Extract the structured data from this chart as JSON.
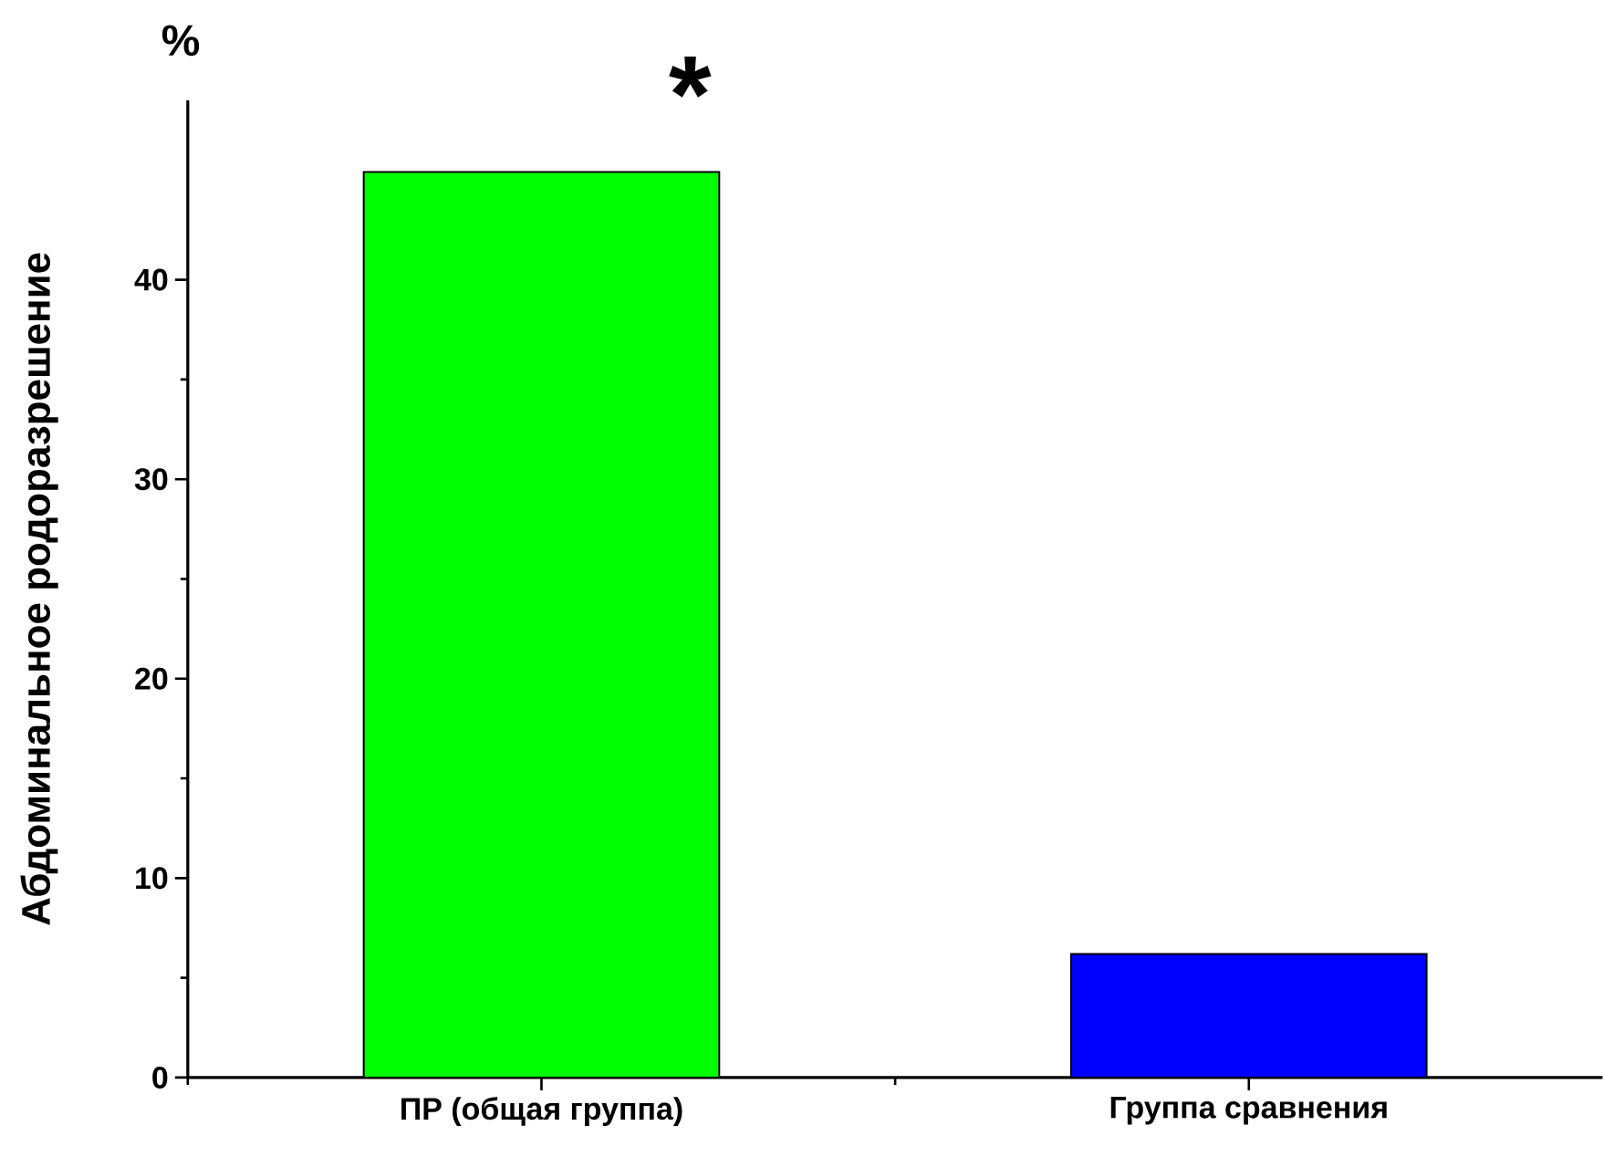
{
  "chart_data": {
    "type": "bar",
    "ylabel": "Абдоминальное родоразрешение",
    "categories": [
      "ПР (общая группа)",
      "Группа сравнения"
    ],
    "values": [
      45.4,
      6.2
    ],
    "colors": [
      "#00ff00",
      "#0000ff"
    ],
    "ylim": [
      0,
      49
    ],
    "yticks": [
      0,
      10,
      20,
      30,
      40
    ],
    "annotations": [
      "%",
      "*"
    ]
  }
}
